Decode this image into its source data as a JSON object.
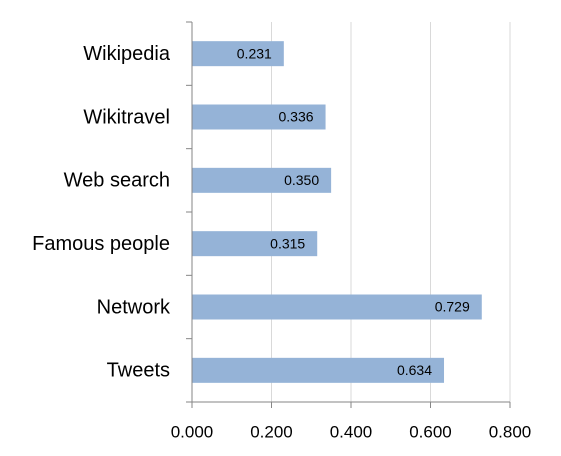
{
  "chart_data": {
    "type": "hbar",
    "categories": [
      "Wikipedia",
      "Wikitravel",
      "Web search",
      "Famous people",
      "Network",
      "Tweets"
    ],
    "values": [
      0.231,
      0.336,
      0.35,
      0.315,
      0.729,
      0.634
    ],
    "value_labels": [
      "0.231",
      "0.336",
      "0.350",
      "0.315",
      "0.729",
      "0.634"
    ],
    "color": "#95b3d7",
    "xlim": [
      0,
      0.8
    ],
    "xticks": [
      {
        "value": 0,
        "label": "0.000"
      },
      {
        "value": 0.2,
        "label": "0.200"
      },
      {
        "value": 0.4,
        "label": "0.400"
      },
      {
        "value": 0.6,
        "label": "0.600"
      },
      {
        "value": 0.8,
        "label": "0.800"
      }
    ],
    "grid": true
  }
}
